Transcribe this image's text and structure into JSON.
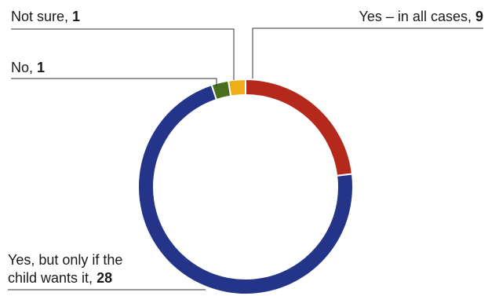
{
  "chart_data": {
    "type": "pie",
    "title": "",
    "donut": true,
    "start": "top",
    "direction": "clockwise",
    "series": [
      {
        "label": "Yes – in all cases",
        "value": 9,
        "color": "#b5291c"
      },
      {
        "label": "Yes, but only if the child wants it",
        "label_lines": [
          "Yes, but only if the",
          "child wants it"
        ],
        "value": 28,
        "color": "#243589"
      },
      {
        "label": "No",
        "value": 1,
        "color": "#4a6e1f"
      },
      {
        "label": "Not sure",
        "value": 1,
        "color": "#f0ad1a"
      }
    ]
  }
}
